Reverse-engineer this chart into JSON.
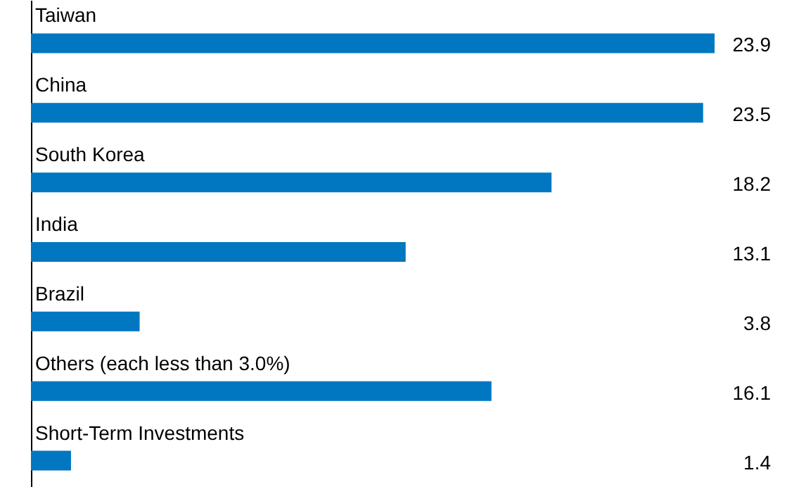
{
  "chart_data": {
    "type": "bar",
    "orientation": "horizontal",
    "categories": [
      "Taiwan",
      "China",
      "South Korea",
      "India",
      "Brazil",
      "Others (each less than 3.0%)",
      "Short-Term Investments"
    ],
    "values": [
      23.9,
      23.5,
      18.2,
      13.1,
      3.8,
      16.1,
      1.4
    ],
    "color": "#0077c0",
    "data_labels": true
  }
}
